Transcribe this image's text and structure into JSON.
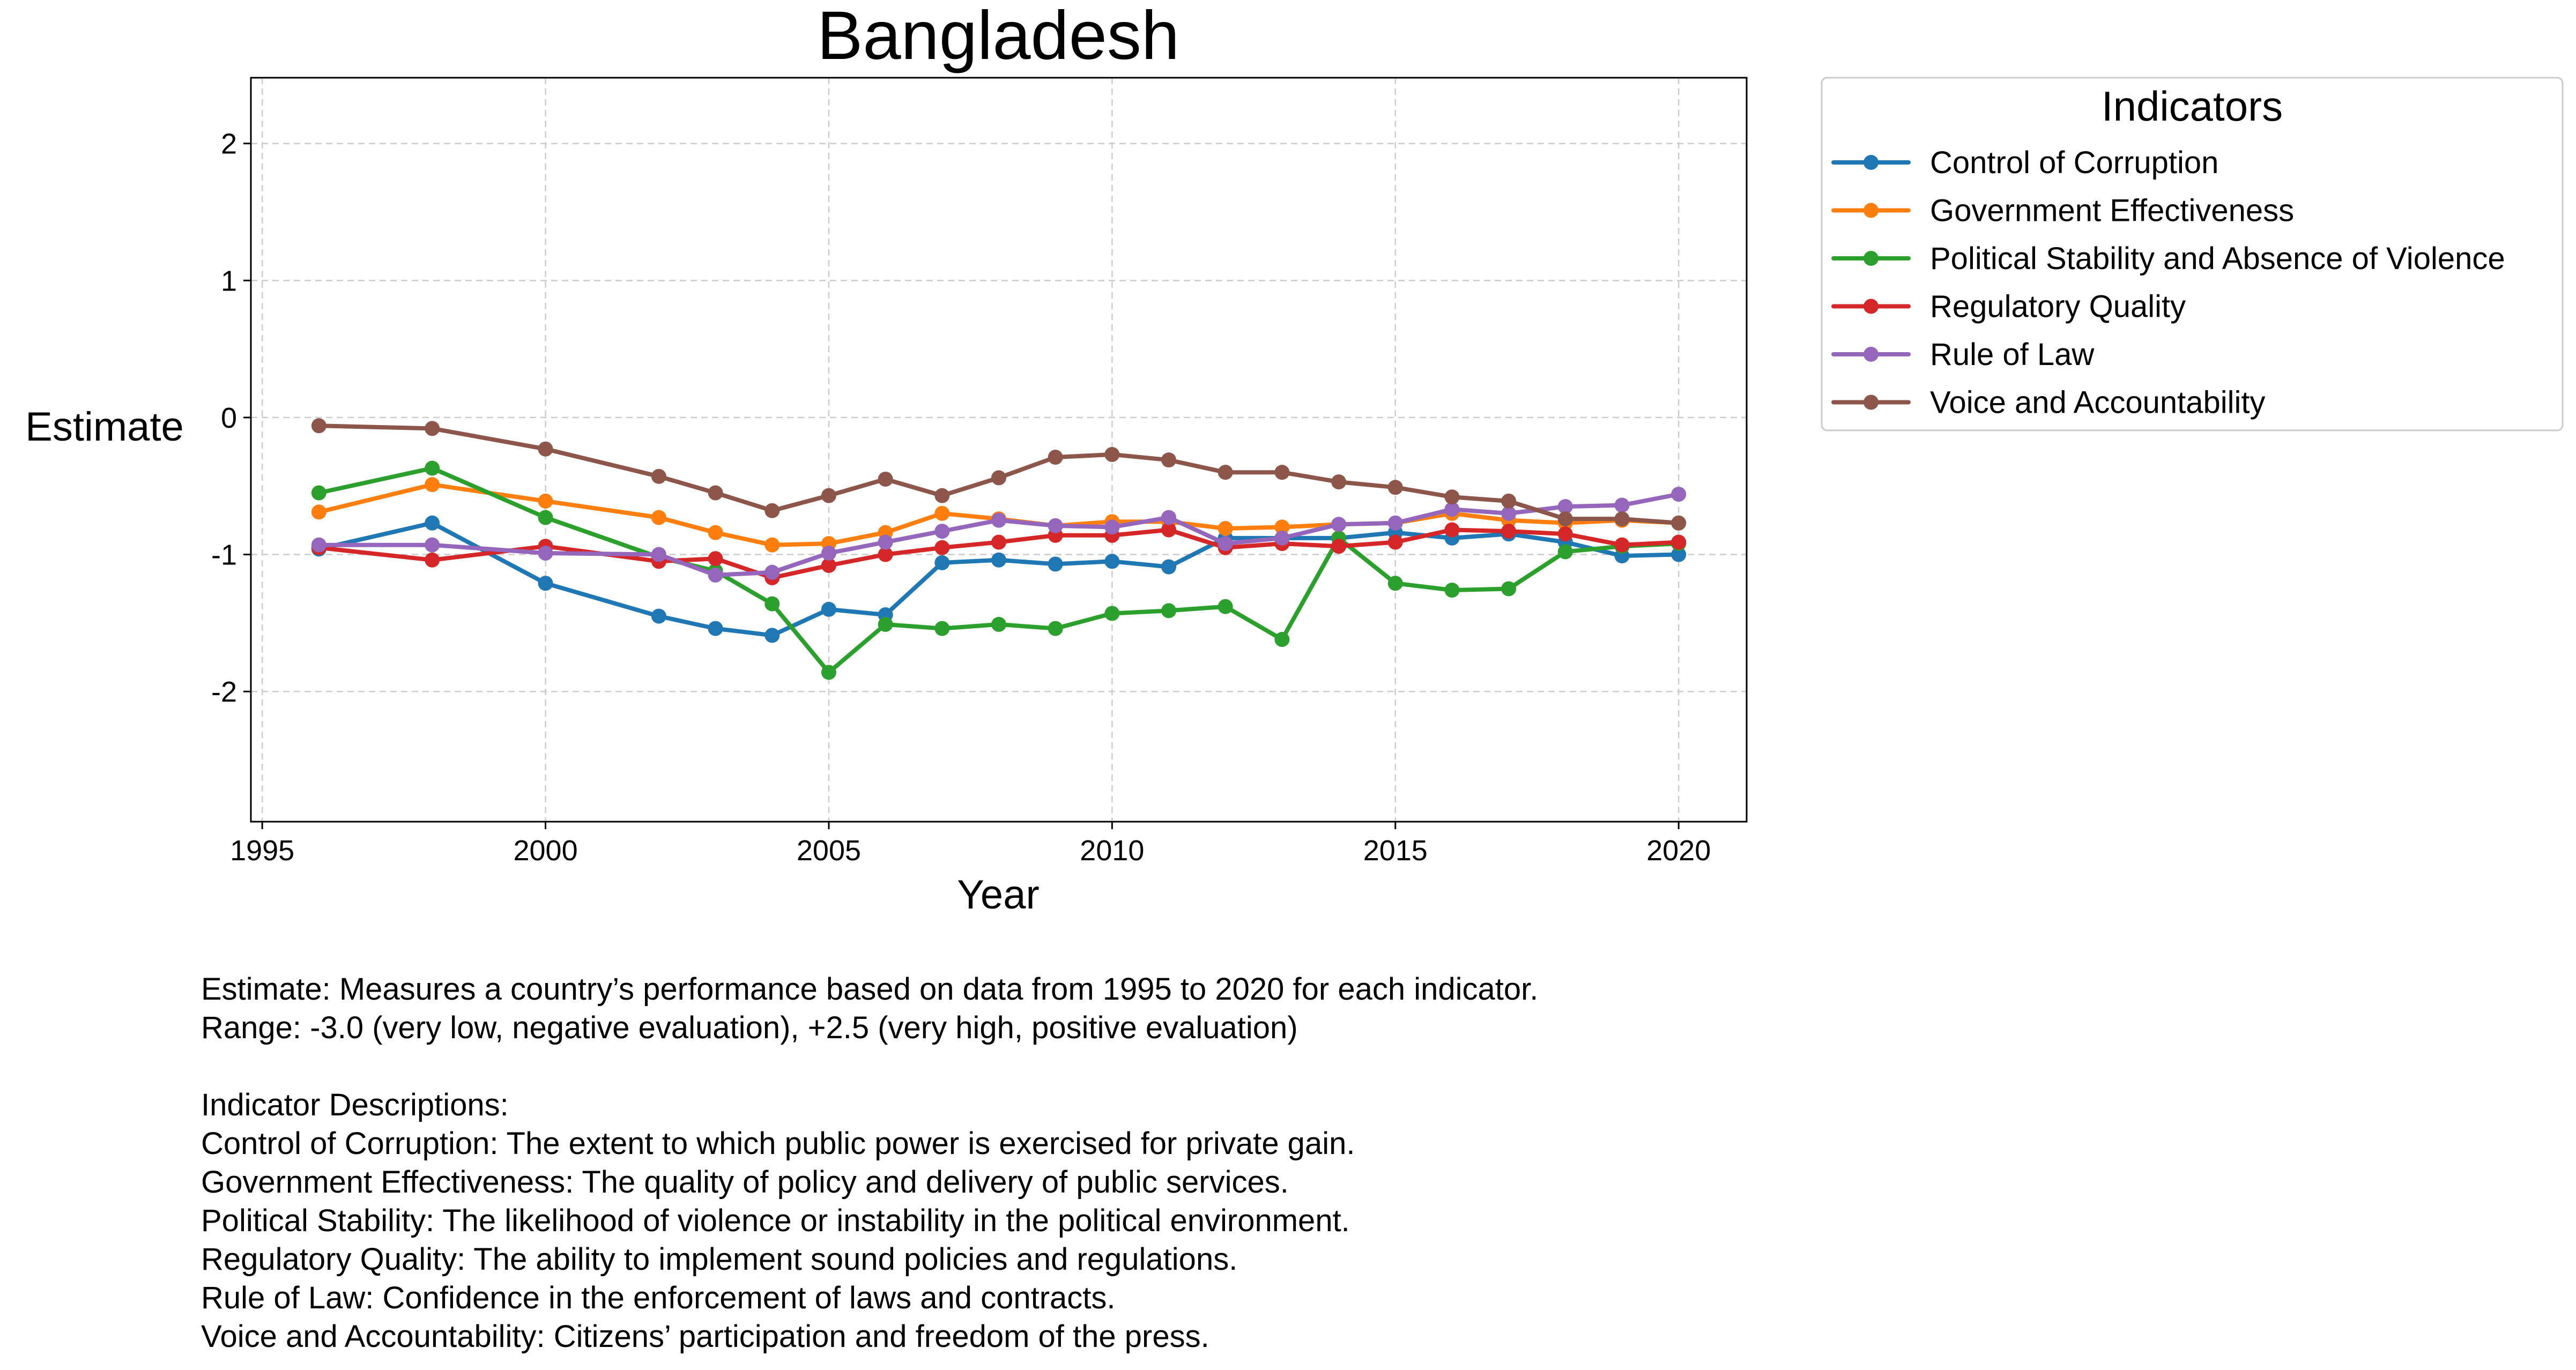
{
  "chart_data": {
    "type": "line",
    "title": "Bangladesh",
    "xlabel": "Year",
    "ylabel": "Estimate",
    "xlim": [
      1994.8,
      2021.2
    ],
    "ylim": [
      -2.95,
      2.48
    ],
    "xticks": [
      1995,
      2000,
      2005,
      2010,
      2015,
      2020
    ],
    "yticks": [
      2,
      1,
      0,
      -1,
      -2
    ],
    "grid": true,
    "legend_title": "Indicators",
    "legend_position": "outside-right-top",
    "x": [
      1996,
      1998,
      2000,
      2002,
      2003,
      2004,
      2005,
      2006,
      2007,
      2008,
      2009,
      2010,
      2011,
      2012,
      2013,
      2014,
      2015,
      2016,
      2017,
      2018,
      2019,
      2020
    ],
    "series": [
      {
        "name": "Control of Corruption",
        "color": "#1f77b4",
        "values": [
          -0.96,
          -0.77,
          -1.21,
          -1.45,
          -1.54,
          -1.59,
          -1.4,
          -1.44,
          -1.06,
          -1.04,
          -1.07,
          -1.05,
          -1.09,
          -0.88,
          -0.88,
          -0.88,
          -0.84,
          -0.88,
          -0.85,
          -0.91,
          -1.01,
          -1.0
        ]
      },
      {
        "name": "Government Effectiveness",
        "color": "#ff7f0e",
        "values": [
          -0.69,
          -0.49,
          -0.61,
          -0.73,
          -0.84,
          -0.93,
          -0.92,
          -0.84,
          -0.7,
          -0.74,
          -0.79,
          -0.76,
          -0.76,
          -0.81,
          -0.8,
          -0.78,
          -0.77,
          -0.7,
          -0.75,
          -0.77,
          -0.75,
          -0.77
        ]
      },
      {
        "name": "Political Stability and Absence of Violence",
        "color": "#2ca02c",
        "values": [
          -0.55,
          -0.37,
          -0.73,
          -1.02,
          -1.12,
          -1.36,
          -1.86,
          -1.51,
          -1.54,
          -1.51,
          -1.54,
          -1.43,
          -1.41,
          -1.38,
          -1.62,
          -0.88,
          -1.21,
          -1.26,
          -1.25,
          -0.98,
          -0.94,
          -0.92
        ]
      },
      {
        "name": "Regulatory Quality",
        "color": "#d62728",
        "values": [
          -0.95,
          -1.04,
          -0.94,
          -1.05,
          -1.03,
          -1.17,
          -1.08,
          -1.0,
          -0.95,
          -0.91,
          -0.86,
          -0.86,
          -0.82,
          -0.95,
          -0.92,
          -0.94,
          -0.91,
          -0.82,
          -0.83,
          -0.85,
          -0.93,
          -0.91
        ]
      },
      {
        "name": "Rule of Law",
        "color": "#9467bd",
        "values": [
          -0.93,
          -0.93,
          -0.99,
          -1.0,
          -1.15,
          -1.13,
          -0.99,
          -0.91,
          -0.83,
          -0.75,
          -0.79,
          -0.8,
          -0.73,
          -0.92,
          -0.88,
          -0.78,
          -0.77,
          -0.67,
          -0.7,
          -0.65,
          -0.64,
          -0.56
        ]
      },
      {
        "name": "Voice and Accountability",
        "color": "#8c564b",
        "values": [
          -0.06,
          -0.08,
          -0.23,
          -0.43,
          -0.55,
          -0.68,
          -0.57,
          -0.45,
          -0.57,
          -0.44,
          -0.29,
          -0.27,
          -0.31,
          -0.4,
          -0.4,
          -0.47,
          -0.51,
          -0.58,
          -0.61,
          -0.74,
          -0.74,
          -0.77
        ]
      }
    ]
  },
  "notes": {
    "line1": "Estimate: Measures a country’s performance based on data from 1995 to 2020 for each indicator.",
    "line2": "Range: -3.0 (very low, negative evaluation), +2.5 (very high, positive evaluation)",
    "heading": "Indicator Descriptions:",
    "descriptions": [
      "Control of Corruption: The extent to which public power is exercised for private gain.",
      "Government Effectiveness: The quality of policy and delivery of public services.",
      "Political Stability: The likelihood of violence or instability in the political environment.",
      "Regulatory Quality: The ability to implement sound policies and regulations.",
      "Rule of Law: Confidence in the enforcement of laws and contracts.",
      "Voice and Accountability: Citizens’ participation and freedom of the press."
    ]
  }
}
